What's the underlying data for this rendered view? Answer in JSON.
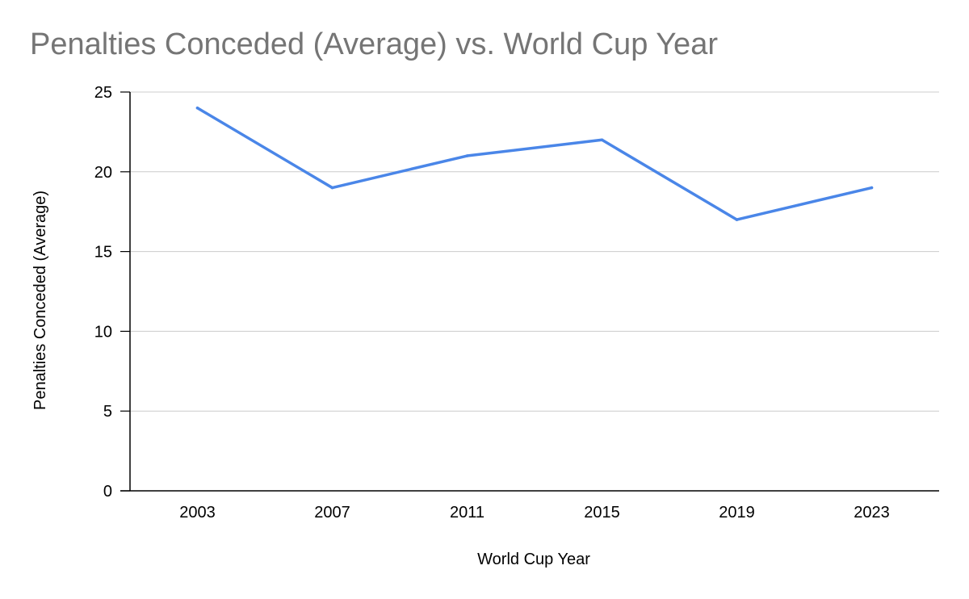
{
  "chart_data": {
    "type": "line",
    "title": "Penalties Conceded (Average) vs. World Cup Year",
    "xlabel": "World Cup Year",
    "ylabel": "Penalties Conceded (Average)",
    "categories": [
      "2003",
      "2007",
      "2011",
      "2015",
      "2019",
      "2023"
    ],
    "series": [
      {
        "values": [
          24,
          19,
          21,
          22,
          17,
          19
        ],
        "color": "#4a86e8"
      }
    ],
    "ylim": [
      0,
      25
    ],
    "yticks": [
      0,
      5,
      10,
      15,
      20,
      25
    ],
    "grid": true,
    "legend": "none"
  }
}
